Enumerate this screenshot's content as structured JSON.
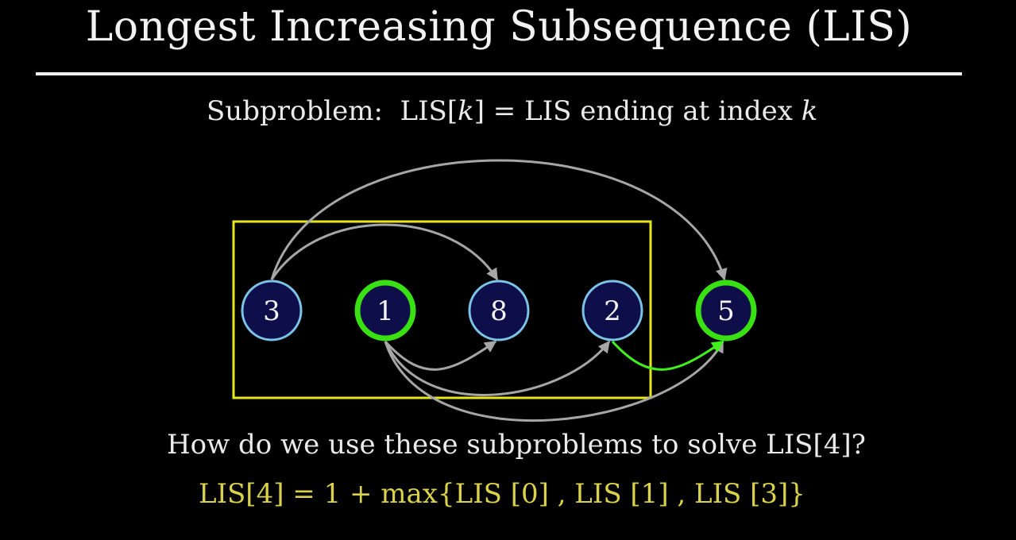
{
  "title": "Longest Increasing Subsequence (LIS)",
  "subproblem": {
    "label": "Subproblem:",
    "lhs_prefix": "LIS[",
    "lhs_var": "k",
    "lhs_suffix": "]",
    "eq": "=",
    "rhs": "LIS ending at index",
    "rhs_var": "k"
  },
  "nodes": [
    {
      "value": "3",
      "highlight": false
    },
    {
      "value": "1",
      "highlight": true
    },
    {
      "value": "8",
      "highlight": false
    },
    {
      "value": "2",
      "highlight": false
    },
    {
      "value": "5",
      "highlight": true
    }
  ],
  "edges": [
    {
      "from": 0,
      "to": 2,
      "style": "gray"
    },
    {
      "from": 0,
      "to": 4,
      "style": "gray"
    },
    {
      "from": 1,
      "to": 2,
      "style": "gray"
    },
    {
      "from": 1,
      "to": 3,
      "style": "gray"
    },
    {
      "from": 1,
      "to": 4,
      "style": "gray"
    },
    {
      "from": 3,
      "to": 4,
      "style": "green"
    }
  ],
  "colors": {
    "node_fill": "#0d0e4a",
    "node_stroke": "#7cc3e8",
    "node_highlight_stroke": "#39e012",
    "edge_gray": "#a6a6a6",
    "edge_green": "#3ff21a",
    "box": "#e6e61e",
    "formula": "#d9d24a"
  },
  "question": "How do we use these subproblems to solve LIS[4]?",
  "formula": "LIS[4] = 1 + max{LIS [0] , LIS [1] , LIS [3]}"
}
